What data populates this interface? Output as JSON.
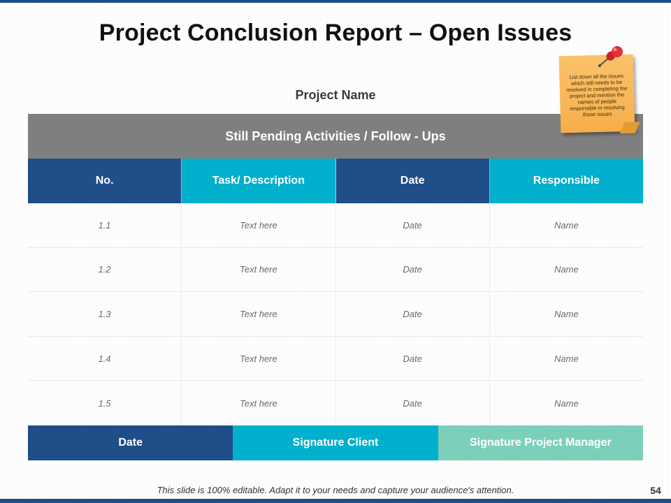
{
  "title": "Project Conclusion Report – Open Issues",
  "project_name": "Project Name",
  "pending_heading": "Still Pending Activities / Follow - Ups",
  "columns": [
    "No.",
    "Task/ Description",
    "Date",
    "Responsible"
  ],
  "rows": [
    [
      "1.1",
      "Text here",
      "Date",
      "Name"
    ],
    [
      "1.2",
      "Text here",
      "Date",
      "Name"
    ],
    [
      "1.3",
      "Text here",
      "Date",
      "Name"
    ],
    [
      "1.4",
      "Text here",
      "Date",
      "Name"
    ],
    [
      "1.5",
      "Text here",
      "Date",
      "Name"
    ]
  ],
  "footer": [
    "Date",
    "Signature Client",
    "Signature Project Manager"
  ],
  "sticky_note": "List down all the issues which still needs to be resolved in completing the project and mention the names of people responsible in resolving those issues",
  "bottom_note": "This slide is 100% editable. Adapt it to your needs and capture your audience's attention.",
  "page_number": "54",
  "colors": {
    "navy": "#1f4e89",
    "cyan": "#00b0cc",
    "mint": "#7ccfba",
    "gray_header": "#7f7f7f",
    "sticky": "#f7ae4a",
    "pin": "#e0303a"
  },
  "icons": {
    "pin": "pushpin-icon"
  }
}
